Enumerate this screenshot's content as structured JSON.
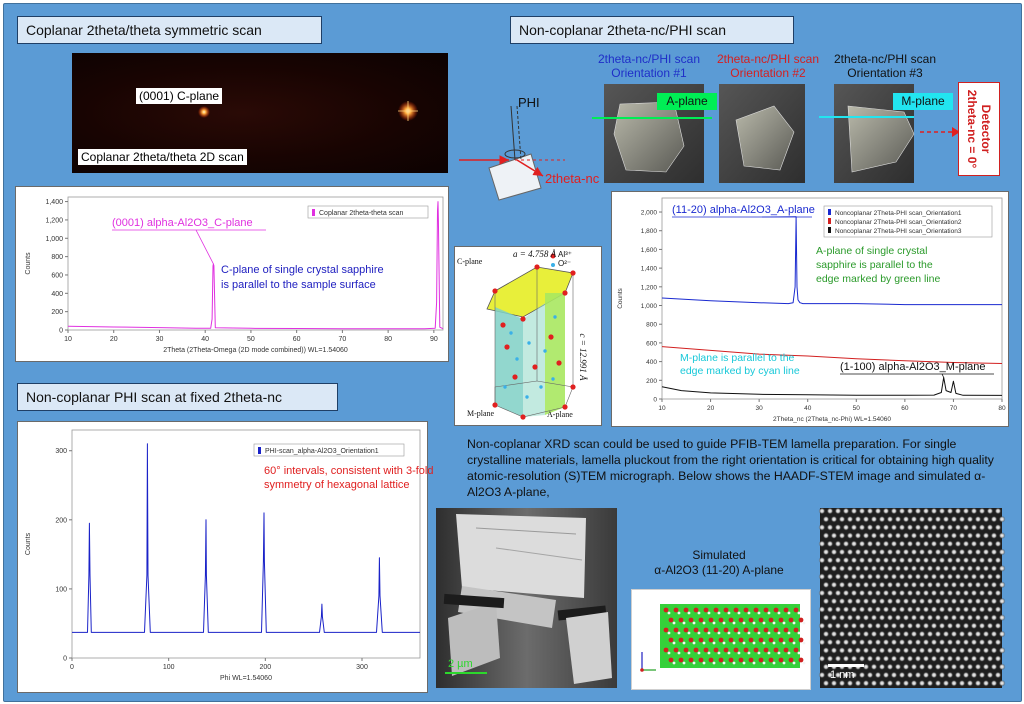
{
  "headers": {
    "coplanar_symmetric": "Coplanar 2theta/theta symmetric scan",
    "noncoplanar_nc_phi": "Non-coplanar 2theta-nc/PHI scan",
    "noncoplanar_phi_fixed": "Non-coplanar PHI scan at fixed 2theta-nc"
  },
  "detector_image": {
    "spot_label": "(0001) C-plane",
    "scan_label": "Coplanar 2theta/theta 2D scan"
  },
  "geometry_sketch": {
    "phi_label": "PHI",
    "two_theta_label": "2theta-nc"
  },
  "orientations": [
    {
      "title": "2theta-nc/PHI scan",
      "subtitle": "Orientation #1",
      "color": "#1f2fc8",
      "tag": "A-plane",
      "tag_color": "#00ee55"
    },
    {
      "title": "2theta-nc/PHI scan",
      "subtitle": "Orientation #2",
      "color": "#d42020",
      "tag": "",
      "tag_color": ""
    },
    {
      "title": "2theta-nc/PHI scan",
      "subtitle": "Orientation #3",
      "color": "#111111",
      "tag": "M-plane",
      "tag_color": "#22e5f0"
    }
  ],
  "detector_note": {
    "line1": "Detector",
    "line2": "2theta-nc = 0°"
  },
  "crystal": {
    "a_label": "a = 4.758 Å",
    "c_label": "c = 12.991 Å",
    "c_plane": "C-plane",
    "m_plane": "M-plane",
    "a_plane": "A-plane",
    "legend_al": "Al³⁺",
    "legend_o": "O²⁻"
  },
  "description": "Non-coplanar XRD scan could be used to guide PFIB-TEM lamella preparation. For single crystalline materials, lamella pluckout from the right orientation is critical for obtaining high quality atomic-resolution (S)TEM micrograph. Below shows the HAADF-STEM image and simulated α-Al2O3 A-plane,",
  "sim_title": {
    "line1": "Simulated",
    "line2": "α-Al2O3 (11-20) A-plane"
  },
  "tem_scalebar": "2 µm",
  "stem_scalebar": "1 nm",
  "chart_data": [
    {
      "type": "line",
      "title": "",
      "xlabel": "2Theta (2Theta-Omega  (2D mode combined)) WL=1.54060",
      "ylabel": "Counts",
      "xlim": [
        10,
        92
      ],
      "ylim": [
        0,
        1450
      ],
      "x_ticks": [
        10,
        20,
        30,
        40,
        50,
        60,
        70,
        80,
        90
      ],
      "y_ticks": [
        0,
        200,
        400,
        600,
        800,
        1000,
        1200,
        1400
      ],
      "y_tick_labels": [
        "0",
        "200",
        "400",
        "600",
        "800",
        "1,000",
        "1,200",
        "1,400"
      ],
      "legend": [
        "Coplanar 2theta-theta scan"
      ],
      "annotation": "(0001) alpha-Al2O3_C-plane",
      "note": "C-plane of single crystal sapphire is parallel to the sample surface",
      "series": [
        {
          "name": "Coplanar 2theta-theta scan",
          "color": "#e030e0",
          "x": [
            10,
            20,
            30,
            38,
            41.2,
            41.5,
            41.7,
            41.8,
            41.9,
            42.2,
            50,
            60,
            70,
            80,
            88,
            90.3,
            90.6,
            90.8,
            90.9,
            91.0,
            91.3,
            92
          ],
          "y": [
            40,
            33,
            26,
            20,
            20,
            120,
            700,
            720,
            700,
            25,
            18,
            16,
            14,
            14,
            14,
            20,
            300,
            1300,
            1400,
            1200,
            30,
            14
          ]
        }
      ]
    },
    {
      "type": "line",
      "title": "",
      "xlabel": "Phi WL=1.54060",
      "ylabel": "Counts",
      "xlim": [
        0,
        360
      ],
      "ylim": [
        0,
        330
      ],
      "x_ticks": [
        0,
        100,
        200,
        300
      ],
      "y_ticks": [
        0,
        100,
        200,
        300
      ],
      "legend": [
        "PHI-scan_alpha-Al2O3_Orientation1"
      ],
      "note_line1": "60° intervals, consistent with 3-fold",
      "note_line2": "symmetry of hexagonal lattice",
      "series": [
        {
          "name": "PHI-scan_alpha-Al2O3_Orientation1",
          "color": "#1a22c8",
          "x": [
            0,
            16,
            17.5,
            18,
            18.6,
            20,
            75,
            77.5,
            78,
            78.6,
            81,
            136,
            138,
            138.6,
            139,
            141,
            196,
            198,
            198.6,
            199,
            201,
            256,
            258,
            258.5,
            259,
            261,
            315,
            317.5,
            318,
            318.6,
            321,
            360
          ],
          "y": [
            37,
            37,
            120,
            195,
            120,
            37,
            37,
            120,
            310,
            120,
            37,
            37,
            120,
            200,
            120,
            37,
            37,
            140,
            210,
            140,
            37,
            37,
            60,
            78,
            60,
            37,
            37,
            90,
            145,
            90,
            37,
            37
          ]
        }
      ]
    },
    {
      "type": "line",
      "title": "",
      "xlabel": "2Theta_nc (2Theta_nc-Phi) WL=1.54060",
      "ylabel": "Counts",
      "xlim": [
        10,
        80
      ],
      "ylim": [
        0,
        2150
      ],
      "x_ticks": [
        10,
        20,
        30,
        40,
        50,
        60,
        70,
        80
      ],
      "y_ticks": [
        0,
        200,
        400,
        600,
        800,
        1000,
        1200,
        1400,
        1600,
        1800,
        2000
      ],
      "y_tick_labels": [
        "0",
        "200",
        "400",
        "600",
        "800",
        "1,000",
        "1,200",
        "1,400",
        "1,600",
        "1,800",
        "2,000"
      ],
      "legend": [
        "Noncoplanar 2Theta-PHI scan_Orientation1",
        "Noncoplanar 2Theta-PHI scan_Orientation2",
        "Noncoplanar 2Theta-PHI scan_Orientation3"
      ],
      "annotation_a": "(11-20) alpha-Al2O3_A-plane",
      "annotation_m": "(1-100) alpha-Al2O3_M-plane",
      "note_a": "A-plane of single crystal sapphire is parallel to the edge marked by green line",
      "note_m": "M-plane is parallel to the edge marked by cyan line",
      "series": [
        {
          "name": "Noncoplanar 2Theta-PHI scan_Orientation1",
          "color": "#1a2ad0",
          "x": [
            10,
            20,
            30,
            36,
            37,
            37.4,
            37.6,
            37.8,
            38,
            38.4,
            39,
            50,
            60,
            70,
            80
          ],
          "y": [
            1080,
            1050,
            1030,
            1020,
            1030,
            1200,
            1950,
            1200,
            1060,
            1030,
            1020,
            1020,
            1010,
            1010,
            1010
          ]
        },
        {
          "name": "Noncoplanar 2Theta-PHI scan_Orientation2",
          "color": "#d22020",
          "x": [
            10,
            20,
            30,
            40,
            50,
            60,
            70,
            80
          ],
          "y": [
            560,
            520,
            480,
            460,
            430,
            410,
            390,
            380
          ]
        },
        {
          "name": "Noncoplanar 2Theta-PHI scan_Orientation3",
          "color": "#111111",
          "x": [
            10,
            14,
            20,
            30,
            40,
            50,
            60,
            66,
            67.5,
            68,
            68.5,
            69.5,
            70,
            70.5,
            72,
            80
          ],
          "y": [
            130,
            90,
            65,
            50,
            45,
            40,
            40,
            42,
            70,
            230,
            90,
            70,
            190,
            60,
            40,
            38
          ]
        }
      ]
    }
  ]
}
